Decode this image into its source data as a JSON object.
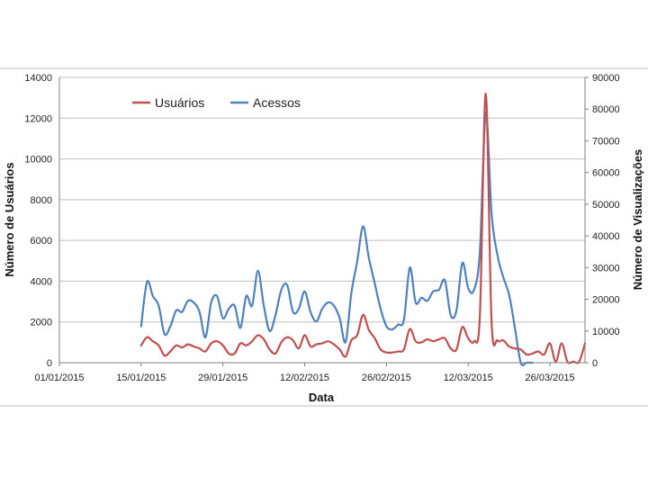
{
  "chart_data": {
    "type": "line",
    "title": "",
    "xlabel": "Data",
    "ylabel_left": "Número de Usuários",
    "ylabel_right": "Número de Visualizações",
    "ylim_left": [
      0,
      14000
    ],
    "ylim_right": [
      0,
      90000
    ],
    "yticks_left": [
      "0",
      "2000",
      "4000",
      "6000",
      "8000",
      "10000",
      "12000",
      "14000"
    ],
    "yticks_right": [
      "0",
      "10000",
      "20000",
      "30000",
      "40000",
      "50000",
      "60000",
      "70000",
      "80000",
      "90000"
    ],
    "xticks": [
      "01/01/2015",
      "15/01/2015",
      "29/01/2015",
      "12/02/2015",
      "26/02/2015",
      "12/03/2015",
      "26/03/2015"
    ],
    "xlim_days": [
      1,
      91
    ],
    "grid": "horizontal",
    "legend_position": "top-left",
    "series": [
      {
        "name": "Usuários",
        "axis": "left",
        "color": "#c0504d",
        "x_day": [
          15,
          16,
          17,
          18,
          19,
          20,
          21,
          22,
          23,
          24,
          25,
          26,
          27,
          28,
          29,
          30,
          31,
          32,
          33,
          34,
          35,
          36,
          37,
          38,
          39,
          40,
          41,
          42,
          43,
          44,
          45,
          46,
          47,
          48,
          49,
          50,
          51,
          52,
          53,
          54,
          55,
          56,
          57,
          58,
          59,
          60,
          61,
          62,
          63,
          64,
          65,
          66,
          67,
          68,
          69,
          70,
          71,
          72,
          73,
          74,
          75,
          76,
          77,
          78,
          79,
          80,
          81,
          82,
          83,
          84,
          85,
          86,
          87,
          88,
          89,
          90,
          91
        ],
        "values": [
          850,
          1250,
          1050,
          850,
          350,
          550,
          850,
          750,
          900,
          800,
          700,
          550,
          950,
          1050,
          850,
          450,
          450,
          950,
          850,
          1050,
          1350,
          1150,
          650,
          450,
          1000,
          1250,
          1100,
          700,
          1350,
          800,
          900,
          950,
          1050,
          900,
          650,
          300,
          1100,
          1350,
          2350,
          1600,
          1200,
          650,
          500,
          500,
          550,
          650,
          1650,
          1050,
          1000,
          1150,
          1050,
          1150,
          1200,
          700,
          650,
          1750,
          1200,
          1050,
          2300,
          13200,
          2000,
          1100,
          1100,
          800,
          700,
          650,
          400,
          450,
          550,
          400,
          950,
          50,
          950,
          50,
          50,
          50,
          950
        ]
      },
      {
        "name": "Acessos",
        "axis": "right",
        "color": "#4f81bd",
        "x_day": [
          15,
          16,
          17,
          18,
          19,
          20,
          21,
          22,
          23,
          24,
          25,
          26,
          27,
          28,
          29,
          30,
          31,
          32,
          33,
          34,
          35,
          36,
          37,
          38,
          39,
          40,
          41,
          42,
          43,
          44,
          45,
          46,
          47,
          48,
          49,
          50,
          51,
          52,
          53,
          54,
          55,
          56,
          57,
          58,
          59,
          60,
          61,
          62,
          63,
          64,
          65,
          66,
          67,
          68,
          69,
          70,
          71,
          72,
          73,
          74,
          75,
          76,
          77,
          78,
          79,
          80,
          81,
          82
        ],
        "values": [
          11500,
          25500,
          21000,
          18000,
          9000,
          11500,
          16500,
          16000,
          19500,
          19000,
          16000,
          8000,
          19000,
          21000,
          14000,
          17000,
          18000,
          11000,
          21000,
          18000,
          29000,
          18000,
          10000,
          15000,
          23000,
          24500,
          16000,
          17000,
          22500,
          16000,
          13000,
          17000,
          19000,
          18000,
          14000,
          6500,
          22000,
          32000,
          43000,
          33000,
          25000,
          17000,
          11500,
          10500,
          12000,
          13500,
          30000,
          19000,
          20500,
          19500,
          22500,
          23000,
          26000,
          15000,
          16500,
          31500,
          23500,
          23000,
          35000,
          79000,
          47000,
          34000,
          27000,
          21500,
          11000,
          0,
          0,
          0
        ]
      }
    ]
  }
}
